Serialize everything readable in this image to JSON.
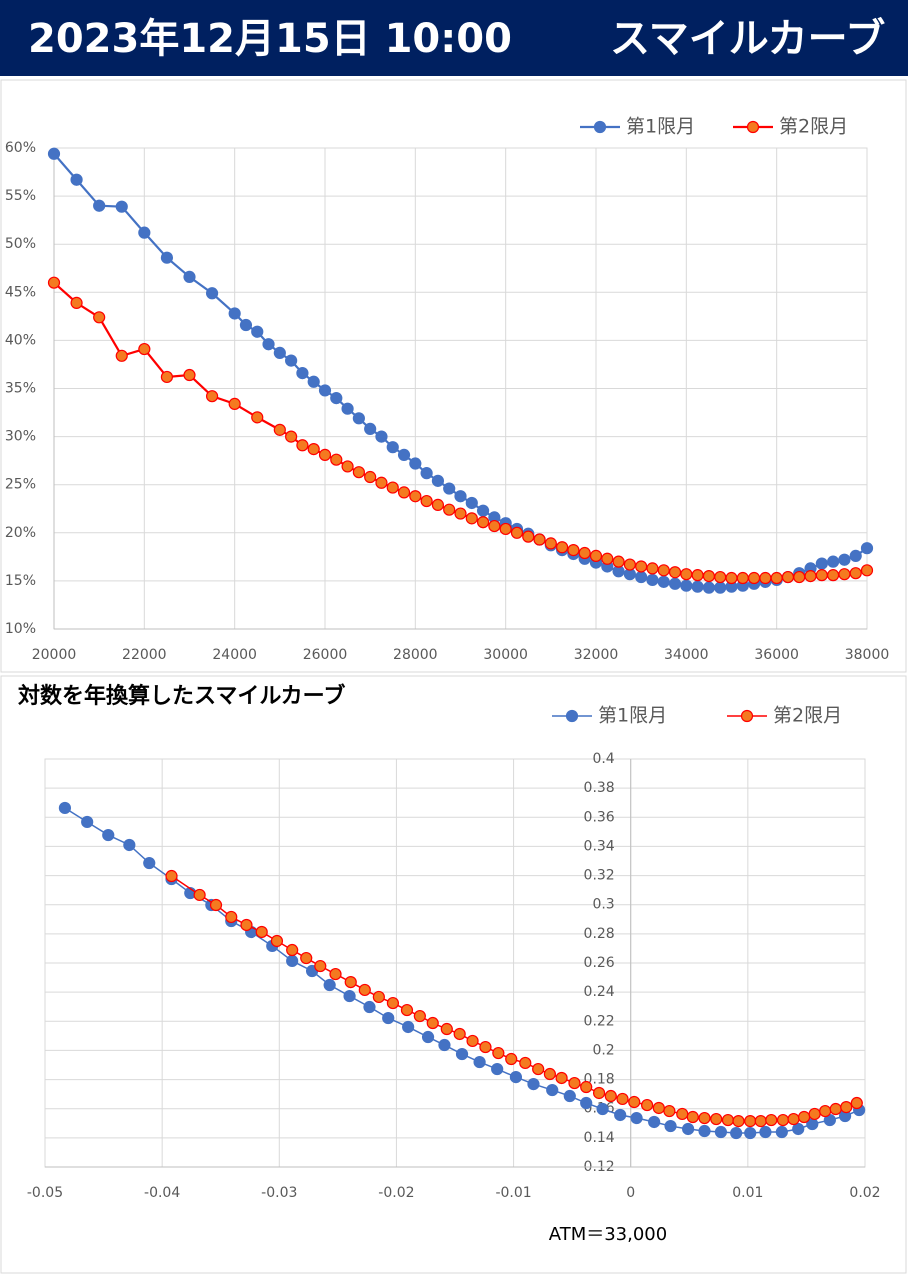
{
  "header": {
    "title": "2023年12月15日 10:00",
    "subtitle": "スマイルカーブ"
  },
  "chart_data": [
    {
      "type": "line",
      "legend": "top-right",
      "grid": true,
      "xlim": [
        20000,
        38000
      ],
      "xticks": [
        20000,
        22000,
        24000,
        26000,
        28000,
        30000,
        32000,
        34000,
        36000,
        38000
      ],
      "ylim": [
        10,
        60
      ],
      "yticks": [
        {
          "value": 10,
          "label": "10%"
        },
        {
          "value": 15,
          "label": "15%"
        },
        {
          "value": 20,
          "label": "20%"
        },
        {
          "value": 25,
          "label": "25%"
        },
        {
          "value": 30,
          "label": "30%"
        },
        {
          "value": 35,
          "label": "35%"
        },
        {
          "value": 40,
          "label": "40%"
        },
        {
          "value": 45,
          "label": "45%"
        },
        {
          "value": 50,
          "label": "50%"
        },
        {
          "value": 55,
          "label": "55%"
        },
        {
          "value": 60,
          "label": "60%"
        }
      ],
      "series": [
        {
          "name": "第1限月",
          "color": "#4472c4",
          "marker_fill": "#4472c4",
          "x": [
            20000,
            20500,
            21000,
            21500,
            22000,
            22500,
            23000,
            23500,
            24000,
            24250,
            24500,
            24750,
            25000,
            25250,
            25500,
            25750,
            26000,
            26250,
            26500,
            26750,
            27000,
            27250,
            27500,
            27750,
            28000,
            28250,
            28500,
            28750,
            29000,
            29250,
            29500,
            29750,
            30000,
            30250,
            30500,
            30750,
            31000,
            31250,
            31500,
            31750,
            32000,
            32250,
            32500,
            32750,
            33000,
            33250,
            33500,
            33750,
            34000,
            34250,
            34500,
            34750,
            35000,
            35250,
            35500,
            35750,
            36000,
            36250,
            36500,
            36750,
            37000,
            37250,
            37500,
            37750,
            38000
          ],
          "values": [
            59.4,
            56.7,
            54.0,
            53.9,
            51.2,
            48.6,
            46.6,
            44.9,
            42.8,
            41.6,
            40.9,
            39.6,
            38.7,
            37.9,
            36.6,
            35.7,
            34.8,
            34.0,
            32.9,
            31.9,
            30.8,
            30.0,
            28.9,
            28.1,
            27.2,
            26.2,
            25.4,
            24.6,
            23.8,
            23.1,
            22.3,
            21.6,
            21.0,
            20.4,
            19.9,
            19.3,
            18.7,
            18.2,
            17.8,
            17.3,
            16.9,
            16.5,
            16.0,
            15.7,
            15.4,
            15.1,
            14.9,
            14.7,
            14.5,
            14.4,
            14.3,
            14.3,
            14.4,
            14.5,
            14.7,
            14.9,
            15.1,
            15.4,
            15.8,
            16.3,
            16.8,
            17.0,
            17.2,
            17.6,
            18.4
          ]
        },
        {
          "name": "第2限月",
          "color": "#ff0000",
          "marker_fill": "#f47a20",
          "x": [
            20000,
            20500,
            21000,
            21500,
            22000,
            22500,
            23000,
            23500,
            24000,
            24500,
            25000,
            25250,
            25500,
            25750,
            26000,
            26250,
            26500,
            26750,
            27000,
            27250,
            27500,
            27750,
            28000,
            28250,
            28500,
            28750,
            29000,
            29250,
            29500,
            29750,
            30000,
            30250,
            30500,
            30750,
            31000,
            31250,
            31500,
            31750,
            32000,
            32250,
            32500,
            32750,
            33000,
            33250,
            33500,
            33750,
            34000,
            34250,
            34500,
            34750,
            35000,
            35250,
            35500,
            35750,
            36000,
            36250,
            36500,
            36750,
            37000,
            37250,
            37500,
            37750,
            38000
          ],
          "values": [
            46.0,
            43.9,
            42.4,
            38.4,
            39.1,
            36.2,
            36.4,
            34.2,
            33.4,
            32.0,
            30.7,
            30.0,
            29.1,
            28.7,
            28.1,
            27.6,
            26.9,
            26.3,
            25.8,
            25.2,
            24.7,
            24.2,
            23.8,
            23.3,
            22.9,
            22.4,
            22.0,
            21.5,
            21.1,
            20.7,
            20.4,
            20.0,
            19.6,
            19.3,
            18.9,
            18.5,
            18.2,
            17.9,
            17.6,
            17.3,
            17.0,
            16.7,
            16.5,
            16.3,
            16.1,
            15.9,
            15.7,
            15.6,
            15.5,
            15.4,
            15.3,
            15.3,
            15.3,
            15.3,
            15.3,
            15.4,
            15.4,
            15.5,
            15.6,
            15.6,
            15.7,
            15.8,
            16.1
          ]
        }
      ]
    },
    {
      "type": "line",
      "title": "対数を年換算したスマイルカーブ",
      "annotation": "ATM＝33,000",
      "legend": "top-right",
      "grid": true,
      "xlim": [
        -0.05,
        0.02
      ],
      "xticks": [
        -0.05,
        -0.04,
        -0.03,
        -0.02,
        -0.01,
        0,
        0.01,
        0.02
      ],
      "ylim": [
        0.12,
        0.4
      ],
      "yticks": [
        0.12,
        0.14,
        0.16,
        0.18,
        0.2,
        0.22,
        0.24,
        0.26,
        0.28,
        0.3,
        0.32,
        0.34,
        0.36,
        0.38,
        0.4
      ],
      "series": [
        {
          "name": "第1限月",
          "color": "#4472c4",
          "marker_fill": "#4472c4",
          "x": [
            -0.0483,
            -0.0464,
            -0.0446,
            -0.0428,
            -0.0411,
            -0.0392,
            -0.0376,
            -0.0358,
            -0.0341,
            -0.0324,
            -0.0306,
            -0.0289,
            -0.0272,
            -0.0257,
            -0.024,
            -0.0223,
            -0.0207,
            -0.019,
            -0.0173,
            -0.0159,
            -0.0144,
            -0.0129,
            -0.0114,
            -0.0098,
            -0.0083,
            -0.0067,
            -0.0052,
            -0.0038,
            -0.0024,
            -0.0009,
            0.0005,
            0.002,
            0.0034,
            0.0049,
            0.0063,
            0.0077,
            0.009,
            0.0102,
            0.0115,
            0.0129,
            0.0143,
            0.0155,
            0.017,
            0.0183,
            0.0195
          ],
          "values": [
            0.3664,
            0.3568,
            0.3478,
            0.341,
            0.3286,
            0.3176,
            0.308,
            0.2998,
            0.2888,
            0.2813,
            0.2717,
            0.2614,
            0.2545,
            0.2449,
            0.2373,
            0.2298,
            0.2222,
            0.2161,
            0.2092,
            0.2037,
            0.1975,
            0.192,
            0.1872,
            0.1817,
            0.1769,
            0.1728,
            0.1687,
            0.1639,
            0.1598,
            0.1557,
            0.1536,
            0.1509,
            0.1481,
            0.1461,
            0.1447,
            0.144,
            0.1433,
            0.1433,
            0.144,
            0.144,
            0.1461,
            0.1495,
            0.1522,
            0.155,
            0.1591
          ]
        },
        {
          "name": "第2限月",
          "color": "#ff0000",
          "marker_fill": "#f47a20",
          "x": [
            -0.0392,
            -0.0368,
            -0.0354,
            -0.0341,
            -0.0328,
            -0.0315,
            -0.0302,
            -0.0289,
            -0.0277,
            -0.0265,
            -0.0252,
            -0.0239,
            -0.0227,
            -0.0215,
            -0.0203,
            -0.0191,
            -0.018,
            -0.0169,
            -0.0157,
            -0.0146,
            -0.0135,
            -0.0124,
            -0.0113,
            -0.0102,
            -0.009,
            -0.0079,
            -0.0069,
            -0.0059,
            -0.0048,
            -0.0038,
            -0.0027,
            -0.0017,
            -0.0007,
            0.0003,
            0.0014,
            0.0024,
            0.0033,
            0.0044,
            0.0053,
            0.0063,
            0.0073,
            0.0083,
            0.0092,
            0.0102,
            0.0111,
            0.012,
            0.013,
            0.0139,
            0.0148,
            0.0157,
            0.0166,
            0.0175,
            0.0184,
            0.0193
          ],
          "values": [
            0.3197,
            0.3067,
            0.2998,
            0.2916,
            0.2861,
            0.2813,
            0.2751,
            0.2689,
            0.2634,
            0.2579,
            0.2524,
            0.2469,
            0.2415,
            0.2367,
            0.2325,
            0.2277,
            0.2236,
            0.2188,
            0.2147,
            0.2113,
            0.2065,
            0.2023,
            0.1982,
            0.1941,
            0.1914,
            0.1872,
            0.1838,
            0.1811,
            0.1776,
            0.1749,
            0.1708,
            0.1687,
            0.1667,
            0.1646,
            0.1625,
            0.1605,
            0.1584,
            0.1564,
            0.1543,
            0.1536,
            0.1529,
            0.1522,
            0.1515,
            0.1515,
            0.1515,
            0.1522,
            0.1522,
            0.1529,
            0.1543,
            0.1564,
            0.1584,
            0.1598,
            0.1611,
            0.1639
          ]
        }
      ]
    }
  ]
}
